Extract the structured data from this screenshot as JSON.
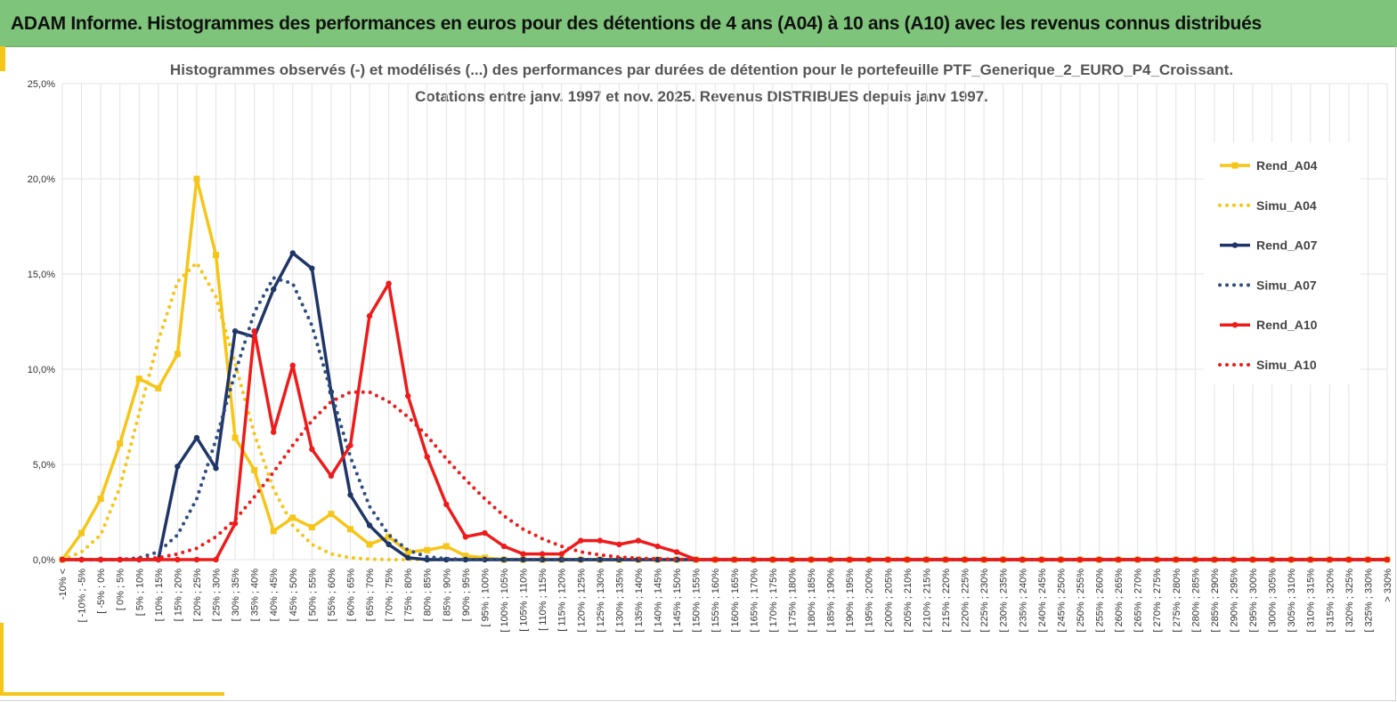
{
  "header": {
    "title": "ADAM Informe. Histogrammes des performances en euros pour des détentions de 4 ans (A04) à 10 ans (A10) avec les revenus connus distribués",
    "background": "#7ec47a"
  },
  "chart_data": {
    "type": "line",
    "title": "Histogrammes observés (-) et modélisés (...) des performances par durées de détention pour le portefeuille PTF_Generique_2_EURO_P4_Croissant.",
    "subtitle": "Cotations entre janv. 1997 et nov. 2025. Revenus DISTRIBUES depuis janv 1997.",
    "xlabel": "",
    "ylabel": "",
    "ylim": [
      0,
      25
    ],
    "yticks": [
      "0,0%",
      "5,0%",
      "10,0%",
      "15,0%",
      "20,0%",
      "25,0%"
    ],
    "grid": true,
    "legend_position": "right",
    "categories": [
      "-10% <",
      "[ -10% ; -5%",
      "[ -5% ; 0%",
      "[ 0% ; 5%",
      "[ 5% ; 10%",
      "[ 10% ; 15%",
      "[ 15% ; 20%",
      "[ 20% ; 25%",
      "[ 25% ; 30%",
      "[ 30% ; 35%",
      "[ 35% ; 40%",
      "[ 40% ; 45%",
      "[ 45% ; 50%",
      "[ 50% ; 55%",
      "[ 55% ; 60%",
      "[ 60% ; 65%",
      "[ 65% ; 70%",
      "[ 70% ; 75%",
      "[ 75% ; 80%",
      "[ 80% ; 85%",
      "[ 85% ; 90%",
      "[ 90% ; 95%",
      "[ 95% ; 100%",
      "[ 100% ; 105%",
      "[ 105% ; 110%",
      "[ 110% ; 115%",
      "[ 115% ; 120%",
      "[ 120% ; 125%",
      "[ 125% ; 130%",
      "[ 130% ; 135%",
      "[ 135% ; 140%",
      "[ 140% ; 145%",
      "[ 145% ; 150%",
      "[ 150% ; 155%",
      "[ 155% ; 160%",
      "[ 160% ; 165%",
      "[ 165% ; 170%",
      "[ 170% ; 175%",
      "[ 175% ; 180%",
      "[ 180% ; 185%",
      "[ 185% ; 190%",
      "[ 190% ; 195%",
      "[ 195% ; 200%",
      "[ 200% ; 205%",
      "[ 205% ; 210%",
      "[ 210% ; 215%",
      "[ 215% ; 220%",
      "[ 220% ; 225%",
      "[ 225% ; 230%",
      "[ 230% ; 235%",
      "[ 235% ; 240%",
      "[ 240% ; 245%",
      "[ 245% ; 250%",
      "[ 250% ; 255%",
      "[ 255% ; 260%",
      "[ 260% ; 265%",
      "[ 265% ; 270%",
      "[ 270% ; 275%",
      "[ 275% ; 280%",
      "[ 280% ; 285%",
      "[ 285% ; 290%",
      "[ 290% ; 295%",
      "[ 295% ; 300%",
      "[ 300% ; 305%",
      "[ 305% ; 310%",
      "[ 310% ; 315%",
      "[ 315% ; 320%",
      "[ 320% ; 325%",
      "[ 325% ; 330%",
      "> 330%"
    ],
    "series": [
      {
        "name": "Rend_A04",
        "color": "#f5c518",
        "style": "solid",
        "marker": "square",
        "values": [
          0,
          1.4,
          3.2,
          6.1,
          9.5,
          9.0,
          10.8,
          20.0,
          16.0,
          6.4,
          4.7,
          1.5,
          2.2,
          1.7,
          2.4,
          1.6,
          0.8,
          1.2,
          0.4,
          0.5,
          0.7,
          0.2,
          0.1,
          0,
          0,
          0,
          0,
          0,
          0,
          0,
          0,
          0,
          0,
          0,
          0,
          0,
          0,
          0,
          0,
          0,
          0,
          0,
          0,
          0,
          0,
          0,
          0,
          0,
          0,
          0,
          0,
          0,
          0,
          0,
          0,
          0,
          0,
          0,
          0,
          0,
          0,
          0,
          0,
          0,
          0,
          0,
          0,
          0,
          0,
          0
        ]
      },
      {
        "name": "Simu_A04",
        "color": "#f5c518",
        "style": "dotted",
        "marker": "none",
        "values": [
          0,
          0.4,
          1.3,
          3.8,
          7.7,
          11.5,
          14.6,
          15.6,
          13.8,
          10.3,
          6.6,
          3.7,
          1.8,
          0.8,
          0.3,
          0.1,
          0.03,
          0,
          0,
          0,
          0,
          0,
          0,
          0,
          0,
          0,
          0,
          0,
          0,
          0,
          0,
          0,
          0,
          0,
          0,
          0,
          0,
          0,
          0,
          0,
          0,
          0,
          0,
          0,
          0,
          0,
          0,
          0,
          0,
          0,
          0,
          0,
          0,
          0,
          0,
          0,
          0,
          0,
          0,
          0,
          0,
          0,
          0,
          0,
          0,
          0,
          0,
          0,
          0,
          0
        ]
      },
      {
        "name": "Rend_A07",
        "color": "#1f3566",
        "style": "solid",
        "marker": "circle",
        "values": [
          0,
          0,
          0,
          0,
          0,
          0,
          4.9,
          6.4,
          4.8,
          12.0,
          11.7,
          14.2,
          16.1,
          15.3,
          8.8,
          3.4,
          1.8,
          0.8,
          0.1,
          0,
          0,
          0,
          0,
          0,
          0,
          0,
          0,
          0,
          0,
          0,
          0,
          0,
          0,
          0,
          0,
          0,
          0,
          0,
          0,
          0,
          0,
          0,
          0,
          0,
          0,
          0,
          0,
          0,
          0,
          0,
          0,
          0,
          0,
          0,
          0,
          0,
          0,
          0,
          0,
          0,
          0,
          0,
          0,
          0,
          0,
          0,
          0,
          0,
          0,
          0
        ]
      },
      {
        "name": "Simu_A07",
        "color": "#2f4d7e",
        "style": "dotted",
        "marker": "none",
        "values": [
          0,
          0,
          0,
          0,
          0.1,
          0.4,
          1.3,
          3.2,
          6.3,
          9.8,
          13.0,
          14.8,
          14.5,
          12.3,
          8.8,
          5.4,
          2.8,
          1.3,
          0.5,
          0.15,
          0.05,
          0,
          0,
          0,
          0,
          0,
          0,
          0,
          0,
          0,
          0,
          0,
          0,
          0,
          0,
          0,
          0,
          0,
          0,
          0,
          0,
          0,
          0,
          0,
          0,
          0,
          0,
          0,
          0,
          0,
          0,
          0,
          0,
          0,
          0,
          0,
          0,
          0,
          0,
          0,
          0,
          0,
          0,
          0,
          0,
          0,
          0,
          0,
          0,
          0
        ]
      },
      {
        "name": "Rend_A10",
        "color": "#ee1b1b",
        "style": "solid",
        "marker": "circle",
        "values": [
          0,
          0,
          0,
          0,
          0,
          0,
          0,
          0,
          0,
          1.9,
          12.0,
          6.7,
          10.2,
          5.8,
          4.4,
          6.0,
          12.8,
          14.5,
          8.6,
          5.4,
          2.9,
          1.2,
          1.4,
          0.7,
          0.3,
          0.3,
          0.3,
          1.0,
          1.0,
          0.8,
          1.0,
          0.7,
          0.4,
          0,
          0,
          0,
          0,
          0,
          0,
          0,
          0,
          0,
          0,
          0,
          0,
          0,
          0,
          0,
          0,
          0,
          0,
          0,
          0,
          0,
          0,
          0,
          0,
          0,
          0,
          0,
          0,
          0,
          0,
          0,
          0,
          0,
          0,
          0,
          0,
          0
        ]
      },
      {
        "name": "Simu_A10",
        "color": "#ee1b1b",
        "style": "dotted",
        "marker": "none",
        "values": [
          0,
          0,
          0,
          0,
          0.03,
          0.1,
          0.3,
          0.6,
          1.2,
          2.1,
          3.3,
          4.6,
          6.0,
          7.3,
          8.3,
          8.8,
          8.8,
          8.3,
          7.5,
          6.5,
          5.3,
          4.2,
          3.2,
          2.3,
          1.6,
          1.1,
          0.7,
          0.4,
          0.25,
          0.14,
          0.07,
          0.04,
          0.02,
          0,
          0,
          0,
          0,
          0,
          0,
          0,
          0,
          0,
          0,
          0,
          0,
          0,
          0,
          0,
          0,
          0,
          0,
          0,
          0,
          0,
          0,
          0,
          0,
          0,
          0,
          0,
          0,
          0,
          0,
          0,
          0,
          0,
          0,
          0,
          0,
          0
        ]
      }
    ]
  }
}
